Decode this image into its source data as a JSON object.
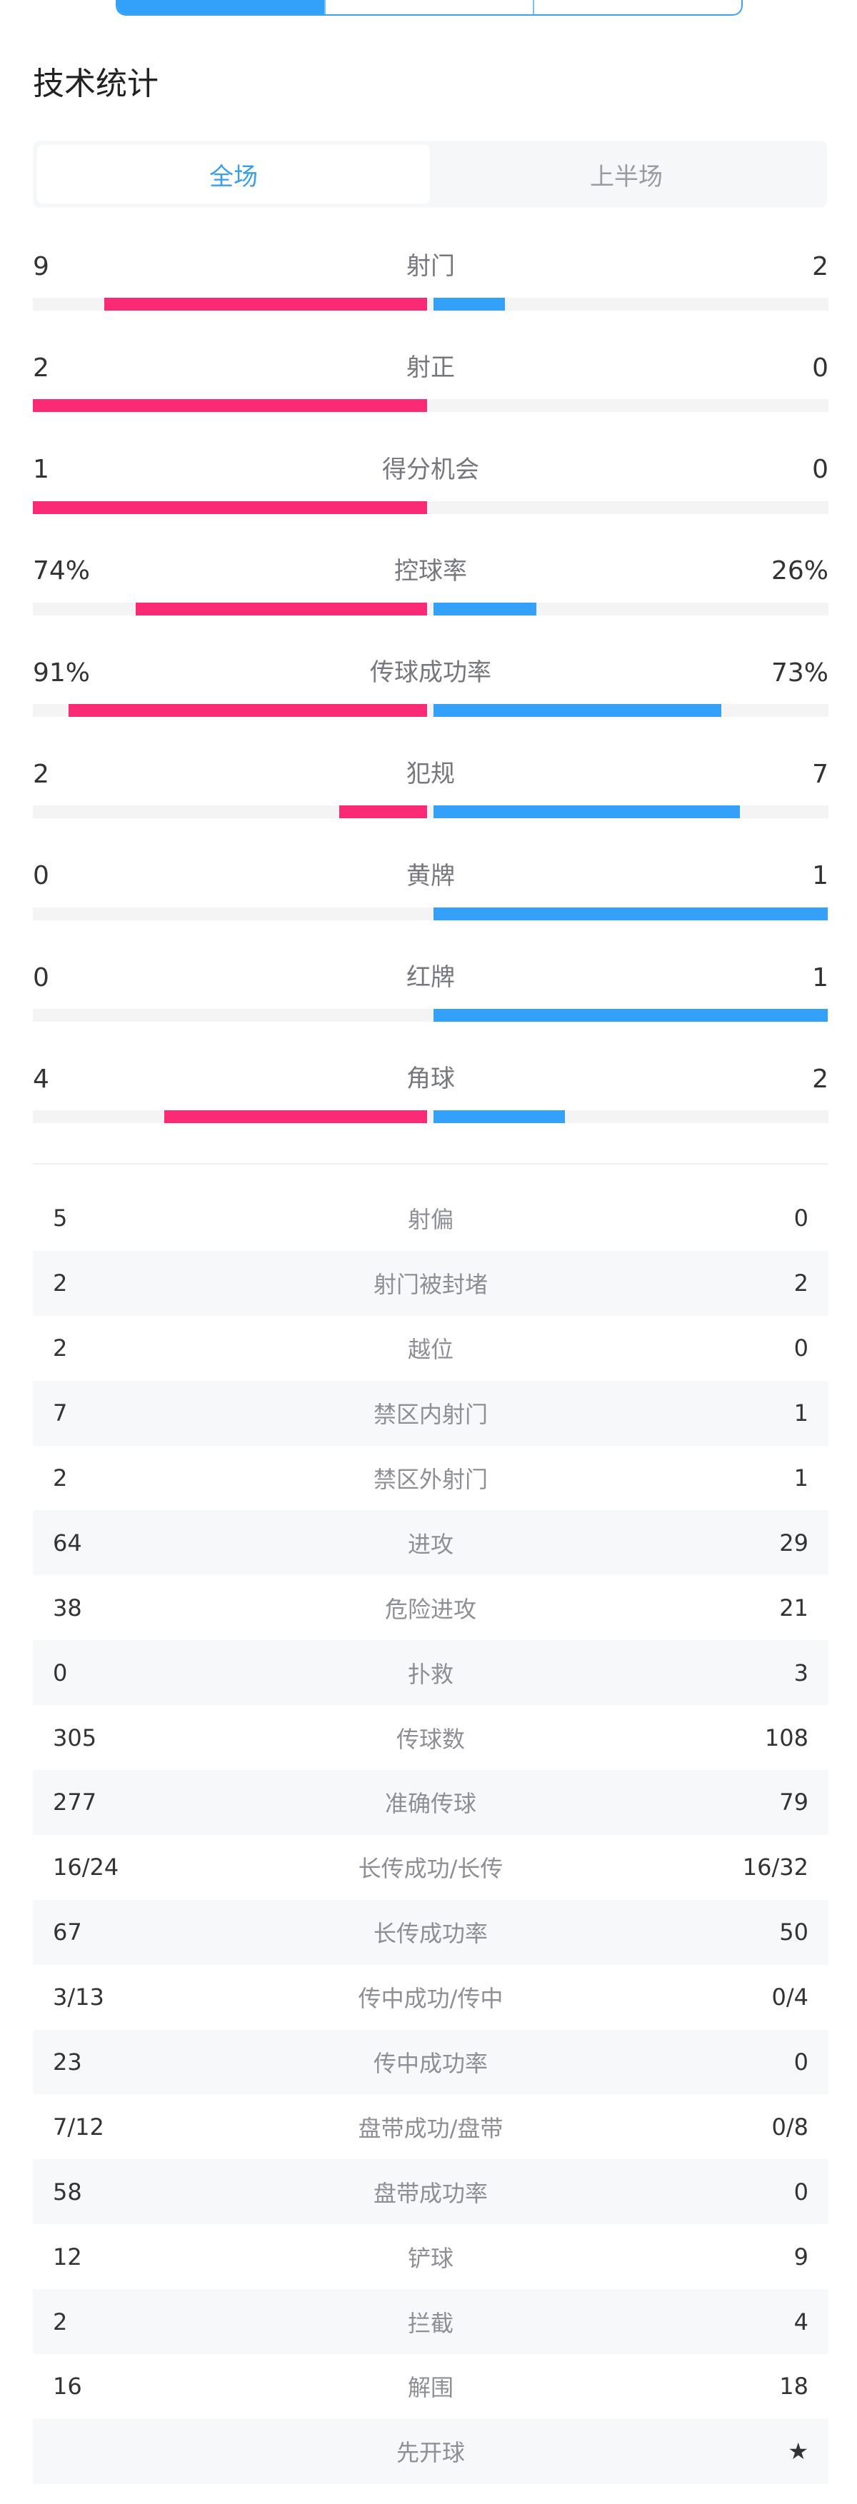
{
  "top_segments": [
    "",
    "",
    ""
  ],
  "section_title": "技术统计",
  "tabs": [
    {
      "label": "全场",
      "active": true
    },
    {
      "label": "上半场",
      "active": false
    }
  ],
  "colors": {
    "home": "#fb2a74",
    "away": "#33a1fa",
    "active_tab": "#3a9ee8"
  },
  "bar_stats": [
    {
      "label": "射门",
      "home": "9",
      "away": "2"
    },
    {
      "label": "射正",
      "home": "2",
      "away": "0"
    },
    {
      "label": "得分机会",
      "home": "1",
      "away": "0"
    },
    {
      "label": "控球率",
      "home": "74%",
      "away": "26%"
    },
    {
      "label": "传球成功率",
      "home": "91%",
      "away": "73%"
    },
    {
      "label": "犯规",
      "home": "2",
      "away": "7"
    },
    {
      "label": "黄牌",
      "home": "0",
      "away": "1"
    },
    {
      "label": "红牌",
      "home": "0",
      "away": "1"
    },
    {
      "label": "角球",
      "home": "4",
      "away": "2"
    }
  ],
  "table_stats": [
    {
      "label": "射偏",
      "home": "5",
      "away": "0"
    },
    {
      "label": "射门被封堵",
      "home": "2",
      "away": "2"
    },
    {
      "label": "越位",
      "home": "2",
      "away": "0"
    },
    {
      "label": "禁区内射门",
      "home": "7",
      "away": "1"
    },
    {
      "label": "禁区外射门",
      "home": "2",
      "away": "1"
    },
    {
      "label": "进攻",
      "home": "64",
      "away": "29"
    },
    {
      "label": "危险进攻",
      "home": "38",
      "away": "21"
    },
    {
      "label": "扑救",
      "home": "0",
      "away": "3"
    },
    {
      "label": "传球数",
      "home": "305",
      "away": "108"
    },
    {
      "label": "准确传球",
      "home": "277",
      "away": "79"
    },
    {
      "label": "长传成功/长传",
      "home": "16/24",
      "away": "16/32"
    },
    {
      "label": "长传成功率",
      "home": "67",
      "away": "50"
    },
    {
      "label": "传中成功/传中",
      "home": "3/13",
      "away": "0/4"
    },
    {
      "label": "传中成功率",
      "home": "23",
      "away": "0"
    },
    {
      "label": "盘带成功/盘带",
      "home": "7/12",
      "away": "0/8"
    },
    {
      "label": "盘带成功率",
      "home": "58",
      "away": "0"
    },
    {
      "label": "铲球",
      "home": "12",
      "away": "9"
    },
    {
      "label": "拦截",
      "home": "2",
      "away": "4"
    },
    {
      "label": "解围",
      "home": "16",
      "away": "18"
    },
    {
      "label": "先开球",
      "home": "",
      "away": "★"
    }
  ]
}
